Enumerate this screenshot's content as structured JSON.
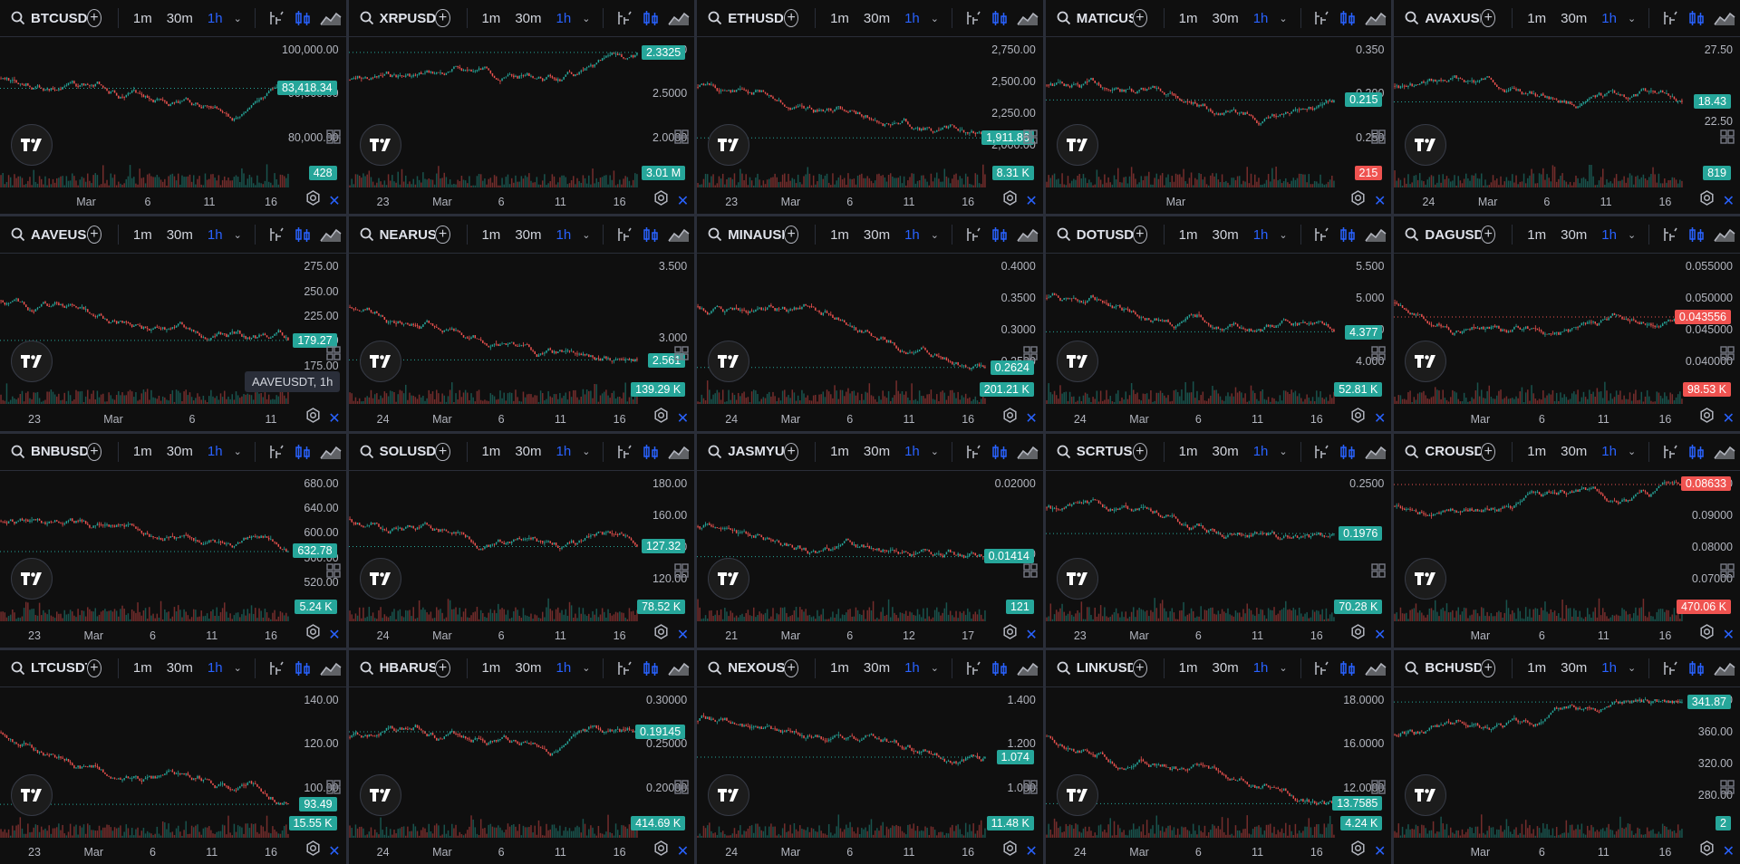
{
  "toolbar": {
    "tf1": "1m",
    "tf2": "30m",
    "tf3": "1h"
  },
  "colors": {
    "up": "#26a69a",
    "down": "#ef5350",
    "accent": "#2962ff",
    "bg": "#0f0f0f",
    "axis_text": "#b2b5be"
  },
  "icons": [
    "search-icon",
    "add-icon",
    "chevron-down-icon",
    "indicators-icon",
    "candles-icon",
    "area-chart-icon",
    "settings-icon",
    "close-icon",
    "layout-icon",
    "tradingview-logo"
  ],
  "tooltip": {
    "panel": 5,
    "text": "AAVEUSDT, 1h"
  },
  "panels": [
    {
      "symbol": "BTCUSDT",
      "yticks": [
        "100,000.00",
        "90,000.00",
        "80,000.00"
      ],
      "xticks": [
        "Mar",
        "6",
        "11",
        "16"
      ],
      "price": "83,418.34",
      "price_color": "green",
      "volume": "428",
      "volume_color": "green",
      "trend": -0.35,
      "seed": 3
    },
    {
      "symbol": "XRPUSDT",
      "yticks": [
        "3.0000",
        "2.5000",
        "2.0000"
      ],
      "xticks": [
        "23",
        "Mar",
        "6",
        "11",
        "16"
      ],
      "price": "2.3325",
      "price_color": "green",
      "volume": "3.01 M",
      "volume_color": "green",
      "trend": -0.2,
      "seed": 7
    },
    {
      "symbol": "ETHUSDT",
      "yticks": [
        "2,750.00",
        "2,500.00",
        "2,250.00",
        "2,000.00"
      ],
      "xticks": [
        "23",
        "Mar",
        "6",
        "11",
        "16"
      ],
      "price": "1,911.86",
      "price_color": "green",
      "volume": "8.31 K",
      "volume_color": "green",
      "trend": -0.6,
      "seed": 11
    },
    {
      "symbol": "MATICUSDT",
      "yticks": [
        "0.350",
        "0.300",
        "0.250"
      ],
      "xticks": [
        "Mar"
      ],
      "price": "0.215",
      "price_color": "green",
      "volume": "215",
      "volume_color": "red",
      "trend": -0.7,
      "seed": 13
    },
    {
      "symbol": "AVAXUSDT",
      "yticks": [
        "27.50",
        "22.50"
      ],
      "xticks": [
        "24",
        "Mar",
        "6",
        "11",
        "16"
      ],
      "price": "18.43",
      "price_color": "green",
      "volume": "819",
      "volume_color": "green",
      "trend": -0.5,
      "seed": 17
    },
    {
      "symbol": "AAVEUSDT",
      "yticks": [
        "275.00",
        "250.00",
        "225.00",
        "200.00",
        "175.00"
      ],
      "xticks": [
        "23",
        "Mar",
        "6",
        "11"
      ],
      "price": "179.27",
      "price_color": "green",
      "volume": "",
      "volume_color": "green",
      "trend": -0.7,
      "seed": 19
    },
    {
      "symbol": "NEARUSDT",
      "yticks": [
        "3.500",
        "3.000"
      ],
      "xticks": [
        "24",
        "Mar",
        "6",
        "11",
        "16"
      ],
      "price": "2.561",
      "price_color": "green",
      "volume": "139.29 K",
      "volume_color": "green",
      "trend": -0.5,
      "seed": 23
    },
    {
      "symbol": "MINAUSDT",
      "yticks": [
        "0.4000",
        "0.3500",
        "0.3000",
        "0.2500"
      ],
      "xticks": [
        "24",
        "Mar",
        "6",
        "11",
        "16"
      ],
      "price": "0.2624",
      "price_color": "green",
      "volume": "201.21 K",
      "volume_color": "green",
      "trend": -0.6,
      "seed": 29
    },
    {
      "symbol": "DOTUSDT",
      "yticks": [
        "5.500",
        "5.000",
        "4.500",
        "4.000"
      ],
      "xticks": [
        "24",
        "Mar",
        "6",
        "11",
        "16"
      ],
      "price": "4.377",
      "price_color": "green",
      "volume": "52.81 K",
      "volume_color": "green",
      "trend": -0.4,
      "seed": 31
    },
    {
      "symbol": "DAGUSDT",
      "yticks": [
        "0.055000",
        "0.050000",
        "0.045000",
        "0.040000"
      ],
      "xticks": [
        "Mar",
        "6",
        "11",
        "16"
      ],
      "price": "0.043556",
      "price_color": "red",
      "volume": "98.53 K",
      "volume_color": "red",
      "trend": -0.1,
      "seed": 37
    },
    {
      "symbol": "BNBUSDT",
      "yticks": [
        "680.00",
        "640.00",
        "600.00",
        "560.00",
        "520.00"
      ],
      "xticks": [
        "23",
        "Mar",
        "6",
        "11",
        "16"
      ],
      "price": "632.78",
      "price_color": "green",
      "volume": "5.24 K",
      "volume_color": "green",
      "trend": -0.2,
      "seed": 41
    },
    {
      "symbol": "SOLUSDT",
      "yticks": [
        "180.00",
        "160.00",
        "140.00",
        "120.00"
      ],
      "xticks": [
        "24",
        "Mar",
        "6",
        "11",
        "16"
      ],
      "price": "127.32",
      "price_color": "green",
      "volume": "78.52 K",
      "volume_color": "green",
      "trend": -0.6,
      "seed": 43
    },
    {
      "symbol": "JASMYUSDT",
      "yticks": [
        "0.02000",
        "0.01500"
      ],
      "xticks": [
        "21",
        "Mar",
        "6",
        "12",
        "17"
      ],
      "price": "0.01414",
      "price_color": "green",
      "volume": "121",
      "volume_color": "green",
      "trend": -0.6,
      "seed": 47
    },
    {
      "symbol": "SCRTUSDT",
      "yticks": [
        "0.2500"
      ],
      "xticks": [
        "23",
        "Mar",
        "6",
        "11",
        "16"
      ],
      "price": "0.1976",
      "price_color": "green",
      "volume": "70.28 K",
      "volume_color": "green",
      "trend": -0.6,
      "seed": 53
    },
    {
      "symbol": "CROUSDT",
      "yticks": [
        "0.10000",
        "0.09000",
        "0.08000",
        "0.07000"
      ],
      "xticks": [
        "Mar",
        "6",
        "11",
        "16"
      ],
      "price": "0.08633",
      "price_color": "red",
      "volume": "470.06 K",
      "volume_color": "red",
      "trend": 0.05,
      "seed": 59
    },
    {
      "symbol": "LTCUSDT",
      "yticks": [
        "140.00",
        "120.00",
        "100.00"
      ],
      "xticks": [
        "23",
        "Mar",
        "6",
        "11",
        "16"
      ],
      "price": "93.49",
      "price_color": "green",
      "volume": "15.55 K",
      "volume_color": "green",
      "trend": -0.6,
      "seed": 61
    },
    {
      "symbol": "HBARUSDT",
      "yticks": [
        "0.30000",
        "0.25000",
        "0.20000"
      ],
      "xticks": [
        "24",
        "Mar",
        "6",
        "11",
        "16"
      ],
      "price": "0.19145",
      "price_color": "green",
      "volume": "414.69 K",
      "volume_color": "green",
      "trend": -0.3,
      "seed": 67
    },
    {
      "symbol": "NEXOUSDT",
      "yticks": [
        "1.400",
        "1.200",
        "1.000"
      ],
      "xticks": [
        "24",
        "Mar",
        "6",
        "11",
        "16"
      ],
      "price": "1.074",
      "price_color": "green",
      "volume": "11.48 K",
      "volume_color": "green",
      "trend": -0.6,
      "seed": 71
    },
    {
      "symbol": "LINKUSDT",
      "yticks": [
        "18.0000",
        "16.0000",
        "12.0000"
      ],
      "xticks": [
        "24",
        "Mar",
        "6",
        "11",
        "16"
      ],
      "price": "13.7585",
      "price_color": "green",
      "volume": "4.24 K",
      "volume_color": "green",
      "trend": -0.5,
      "seed": 73
    },
    {
      "symbol": "BCHUSDT",
      "yticks": [
        "400.00",
        "360.00",
        "320.00",
        "280.00"
      ],
      "xticks": [
        "Mar",
        "6",
        "11",
        "16"
      ],
      "price": "341.87",
      "price_color": "green",
      "volume": "2",
      "volume_color": "green",
      "trend": 0.3,
      "seed": 79
    }
  ]
}
